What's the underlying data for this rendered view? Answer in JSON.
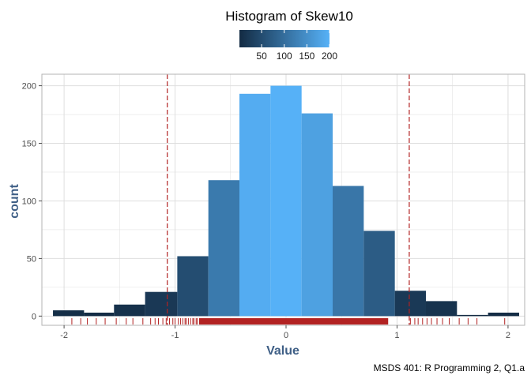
{
  "chart_data": {
    "type": "bar",
    "title": "Histogram of Skew10",
    "xlabel": "Value",
    "ylabel": "count",
    "caption": "MSDS 401: R Programming 2, Q1.a",
    "xlim": [
      -2.2,
      2.15
    ],
    "ylim": [
      -8,
      210
    ],
    "x_ticks": [
      -2,
      -1,
      0,
      1,
      2
    ],
    "y_ticks": [
      0,
      50,
      100,
      150,
      200
    ],
    "grid": true,
    "bins": [
      {
        "x0": -2.1,
        "x1": -1.82,
        "count": 5
      },
      {
        "x0": -1.82,
        "x1": -1.55,
        "count": 3
      },
      {
        "x0": -1.55,
        "x1": -1.27,
        "count": 10
      },
      {
        "x0": -1.27,
        "x1": -0.98,
        "count": 21
      },
      {
        "x0": -0.98,
        "x1": -0.7,
        "count": 52
      },
      {
        "x0": -0.7,
        "x1": -0.42,
        "count": 118
      },
      {
        "x0": -0.42,
        "x1": -0.14,
        "count": 193
      },
      {
        "x0": -0.14,
        "x1": 0.14,
        "count": 200
      },
      {
        "x0": 0.14,
        "x1": 0.42,
        "count": 176
      },
      {
        "x0": 0.42,
        "x1": 0.7,
        "count": 113
      },
      {
        "x0": 0.7,
        "x1": 0.98,
        "count": 74
      },
      {
        "x0": 0.98,
        "x1": 1.26,
        "count": 22
      },
      {
        "x0": 1.26,
        "x1": 1.54,
        "count": 13
      },
      {
        "x0": 1.54,
        "x1": 1.82,
        "count": 1
      },
      {
        "x0": 1.82,
        "x1": 2.1,
        "count": 3
      }
    ],
    "reference_lines_x": [
      -1.07,
      1.11
    ],
    "rug_values": [
      -1.93,
      -1.85,
      -1.79,
      -1.71,
      -1.63,
      -1.53,
      -1.44,
      -1.38,
      -1.29,
      -1.22,
      -1.18,
      -1.15,
      -1.11,
      -1.08,
      -1.05,
      -1.02,
      -1.0,
      -0.97,
      -0.95,
      -0.93,
      -0.91,
      -0.9,
      -0.88,
      -0.86,
      -0.84,
      -0.83,
      -0.81,
      -0.8,
      -0.78,
      1.12,
      1.16,
      1.19,
      1.23,
      1.27,
      1.31,
      1.36,
      1.41,
      1.47,
      1.56,
      1.64,
      1.72,
      1.97
    ],
    "rug_dense_range": [
      -0.78,
      0.92
    ],
    "colors": {
      "rug": "#b22222",
      "ref_line": "#b22222",
      "fill_low": "#132b43",
      "fill_high": "#56b1f7",
      "grid": "#dedede",
      "panel_border": "#b3b3b3"
    },
    "legend": {
      "placement": "top",
      "type": "colorbar",
      "range": [
        1,
        200
      ],
      "ticks": [
        50,
        100,
        150,
        200
      ]
    }
  }
}
